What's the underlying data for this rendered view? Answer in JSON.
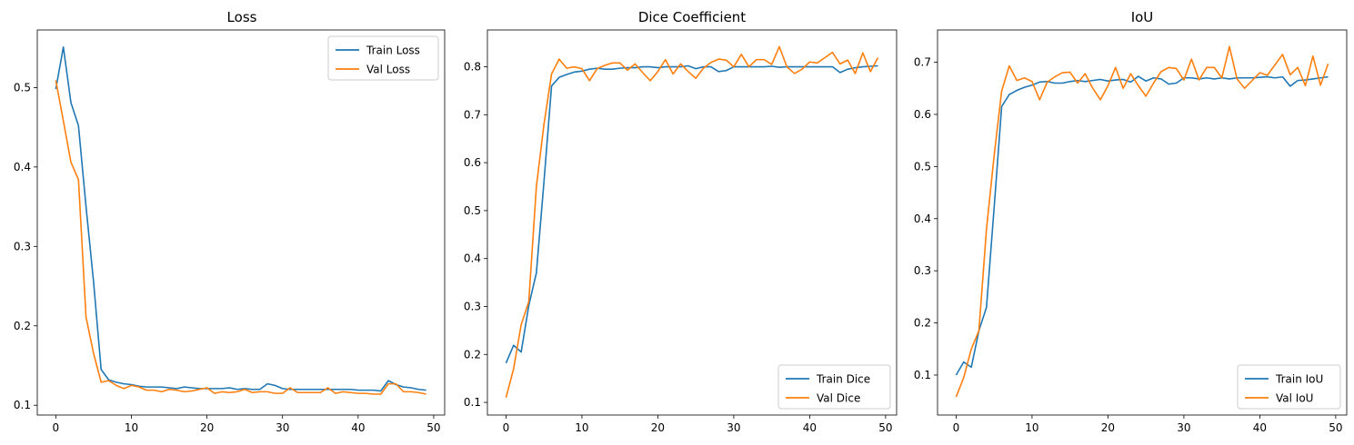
{
  "chart_data": [
    {
      "type": "line",
      "title": "Loss",
      "xlabel": "",
      "ylabel": "",
      "xlim": [
        -2.45,
        51.45
      ],
      "ylim": [
        0.0877,
        0.5725
      ],
      "xticks": [
        0,
        10,
        20,
        30,
        40,
        50
      ],
      "yticks": [
        0.1,
        0.2,
        0.3,
        0.4,
        0.5
      ],
      "grid": false,
      "legend_position": "upper right",
      "x": [
        0,
        1,
        2,
        3,
        4,
        5,
        6,
        7,
        8,
        9,
        10,
        11,
        12,
        13,
        14,
        15,
        16,
        17,
        18,
        19,
        20,
        21,
        22,
        23,
        24,
        25,
        26,
        27,
        28,
        29,
        30,
        31,
        32,
        33,
        34,
        35,
        36,
        37,
        38,
        39,
        40,
        41,
        42,
        43,
        44,
        45,
        46,
        47,
        48,
        49
      ],
      "series": [
        {
          "name": "Train Loss",
          "color": "#1f77b4",
          "values": [
            0.498,
            0.551,
            0.481,
            0.452,
            0.35,
            0.255,
            0.145,
            0.132,
            0.129,
            0.127,
            0.126,
            0.124,
            0.123,
            0.123,
            0.123,
            0.122,
            0.121,
            0.123,
            0.122,
            0.121,
            0.121,
            0.121,
            0.121,
            0.122,
            0.12,
            0.121,
            0.12,
            0.12,
            0.127,
            0.125,
            0.121,
            0.12,
            0.12,
            0.12,
            0.12,
            0.12,
            0.12,
            0.12,
            0.12,
            0.12,
            0.119,
            0.119,
            0.119,
            0.118,
            0.131,
            0.126,
            0.123,
            0.122,
            0.12,
            0.119
          ]
        },
        {
          "name": "Val Loss",
          "color": "#ff7f0e",
          "values": [
            0.509,
            0.458,
            0.406,
            0.384,
            0.211,
            0.165,
            0.129,
            0.131,
            0.125,
            0.121,
            0.125,
            0.123,
            0.119,
            0.119,
            0.117,
            0.12,
            0.119,
            0.117,
            0.118,
            0.12,
            0.122,
            0.115,
            0.117,
            0.116,
            0.117,
            0.12,
            0.116,
            0.117,
            0.117,
            0.115,
            0.115,
            0.122,
            0.116,
            0.116,
            0.116,
            0.116,
            0.122,
            0.115,
            0.117,
            0.116,
            0.115,
            0.115,
            0.114,
            0.114,
            0.127,
            0.127,
            0.117,
            0.117,
            0.116,
            0.114
          ]
        }
      ]
    },
    {
      "type": "line",
      "title": "Dice Coefficient",
      "xlabel": "",
      "ylabel": "",
      "xlim": [
        -2.45,
        51.45
      ],
      "ylim": [
        0.0736,
        0.8768
      ],
      "xticks": [
        0,
        10,
        20,
        30,
        40,
        50
      ],
      "yticks": [
        0.1,
        0.2,
        0.3,
        0.4,
        0.5,
        0.6,
        0.7,
        0.8
      ],
      "grid": false,
      "legend_position": "lower right",
      "x": [
        0,
        1,
        2,
        3,
        4,
        5,
        6,
        7,
        8,
        9,
        10,
        11,
        12,
        13,
        14,
        15,
        16,
        17,
        18,
        19,
        20,
        21,
        22,
        23,
        24,
        25,
        26,
        27,
        28,
        29,
        30,
        31,
        32,
        33,
        34,
        35,
        36,
        37,
        38,
        39,
        40,
        41,
        42,
        43,
        44,
        45,
        46,
        47,
        48,
        49
      ],
      "series": [
        {
          "name": "Train Dice",
          "color": "#1f77b4",
          "values": [
            0.182,
            0.219,
            0.205,
            0.302,
            0.37,
            0.56,
            0.76,
            0.778,
            0.784,
            0.789,
            0.791,
            0.795,
            0.797,
            0.795,
            0.795,
            0.797,
            0.798,
            0.798,
            0.8,
            0.8,
            0.798,
            0.8,
            0.8,
            0.8,
            0.802,
            0.796,
            0.8,
            0.8,
            0.79,
            0.792,
            0.8,
            0.8,
            0.8,
            0.8,
            0.8,
            0.801,
            0.799,
            0.8,
            0.8,
            0.8,
            0.8,
            0.8,
            0.8,
            0.8,
            0.788,
            0.795,
            0.798,
            0.8,
            0.801,
            0.802
          ]
        },
        {
          "name": "Val Dice",
          "color": "#ff7f0e",
          "values": [
            0.11,
            0.17,
            0.262,
            0.31,
            0.55,
            0.68,
            0.785,
            0.816,
            0.797,
            0.8,
            0.796,
            0.771,
            0.796,
            0.803,
            0.808,
            0.808,
            0.793,
            0.806,
            0.788,
            0.771,
            0.79,
            0.815,
            0.785,
            0.806,
            0.79,
            0.776,
            0.797,
            0.809,
            0.816,
            0.814,
            0.8,
            0.826,
            0.8,
            0.815,
            0.815,
            0.805,
            0.842,
            0.8,
            0.786,
            0.795,
            0.81,
            0.808,
            0.819,
            0.83,
            0.806,
            0.814,
            0.786,
            0.829,
            0.79,
            0.819
          ]
        }
      ]
    },
    {
      "type": "line",
      "title": "IoU",
      "xlabel": "",
      "ylabel": "",
      "xlim": [
        -2.45,
        51.45
      ],
      "ylim": [
        0.0233,
        0.7619
      ],
      "xticks": [
        0,
        10,
        20,
        30,
        40,
        50
      ],
      "yticks": [
        0.1,
        0.2,
        0.3,
        0.4,
        0.5,
        0.6,
        0.7
      ],
      "grid": false,
      "legend_position": "lower right",
      "x": [
        0,
        1,
        2,
        3,
        4,
        5,
        6,
        7,
        8,
        9,
        10,
        11,
        12,
        13,
        14,
        15,
        16,
        17,
        18,
        19,
        20,
        21,
        22,
        23,
        24,
        25,
        26,
        27,
        28,
        29,
        30,
        31,
        32,
        33,
        34,
        35,
        36,
        37,
        38,
        39,
        40,
        41,
        42,
        43,
        44,
        45,
        46,
        47,
        48,
        49
      ],
      "series": [
        {
          "name": "Train IoU",
          "color": "#1f77b4",
          "values": [
            0.1,
            0.125,
            0.115,
            0.185,
            0.23,
            0.42,
            0.615,
            0.638,
            0.646,
            0.652,
            0.656,
            0.662,
            0.663,
            0.66,
            0.66,
            0.663,
            0.665,
            0.663,
            0.665,
            0.667,
            0.664,
            0.666,
            0.667,
            0.662,
            0.673,
            0.664,
            0.67,
            0.668,
            0.658,
            0.66,
            0.67,
            0.67,
            0.668,
            0.67,
            0.668,
            0.67,
            0.668,
            0.67,
            0.67,
            0.67,
            0.671,
            0.672,
            0.67,
            0.672,
            0.654,
            0.665,
            0.666,
            0.668,
            0.67,
            0.672
          ]
        },
        {
          "name": "Val IoU",
          "color": "#ff7f0e",
          "values": [
            0.058,
            0.095,
            0.15,
            0.185,
            0.38,
            0.52,
            0.645,
            0.693,
            0.665,
            0.67,
            0.663,
            0.628,
            0.662,
            0.672,
            0.68,
            0.681,
            0.66,
            0.678,
            0.65,
            0.628,
            0.655,
            0.69,
            0.65,
            0.678,
            0.655,
            0.635,
            0.66,
            0.682,
            0.69,
            0.688,
            0.666,
            0.706,
            0.666,
            0.69,
            0.69,
            0.67,
            0.73,
            0.668,
            0.65,
            0.665,
            0.68,
            0.675,
            0.695,
            0.715,
            0.676,
            0.69,
            0.655,
            0.712,
            0.656,
            0.697
          ]
        }
      ]
    }
  ]
}
